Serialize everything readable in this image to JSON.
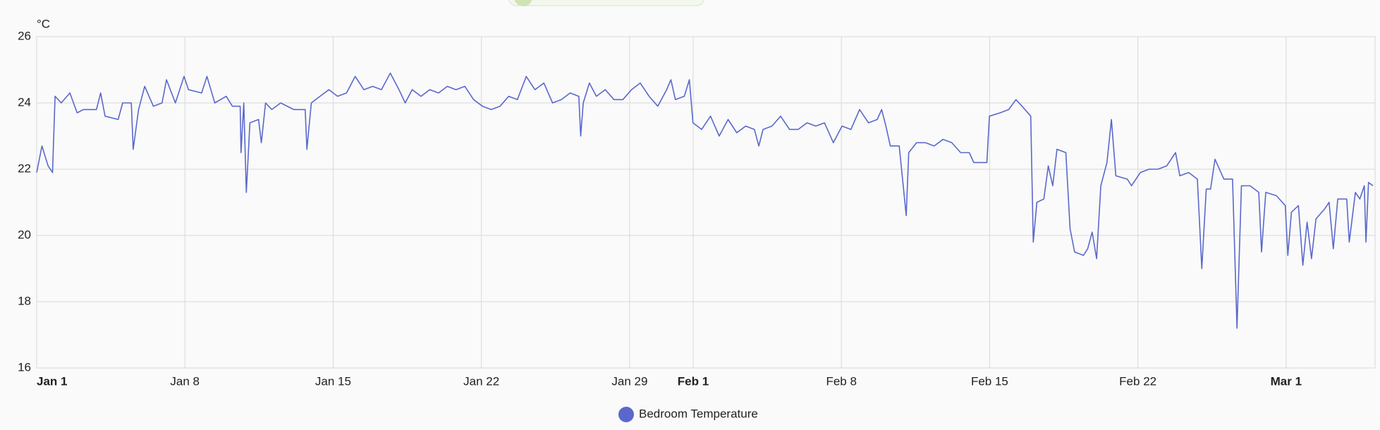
{
  "chart_data": {
    "type": "line",
    "ylabel": "°C",
    "xlim": [
      0,
      63.2
    ],
    "ylim": [
      16,
      26
    ],
    "yticks": [
      16,
      18,
      20,
      22,
      24,
      26
    ],
    "xticks": [
      {
        "value": 0,
        "label": "Jan 1",
        "bold": true
      },
      {
        "value": 7,
        "label": "Jan 8"
      },
      {
        "value": 14,
        "label": "Jan 15"
      },
      {
        "value": 21,
        "label": "Jan 22"
      },
      {
        "value": 28,
        "label": "Jan 29"
      },
      {
        "value": 31,
        "label": "Feb 1",
        "bold": true
      },
      {
        "value": 38,
        "label": "Feb 8"
      },
      {
        "value": 45,
        "label": "Feb 15"
      },
      {
        "value": 52,
        "label": "Feb 22"
      },
      {
        "value": 59,
        "label": "Mar 1",
        "bold": true
      }
    ],
    "grid": true,
    "legend": "bottom",
    "x": [
      0,
      0.25,
      0.54,
      0.75,
      0.87,
      1.16,
      1.57,
      1.91,
      2.2,
      2.82,
      3.02,
      3.23,
      3.85,
      4.06,
      4.47,
      4.56,
      4.81,
      5.1,
      5.51,
      5.92,
      6.13,
      6.55,
      6.96,
      7.17,
      7.79,
      8.04,
      8.41,
      8.95,
      9.24,
      9.61,
      9.65,
      9.78,
      9.9,
      10.07,
      10.48,
      10.61,
      10.81,
      11.1,
      11.52,
      12.14,
      12.68,
      12.76,
      12.97,
      13.38,
      13.8,
      14.21,
      14.63,
      15.04,
      15.45,
      15.87,
      16.28,
      16.7,
      17.11,
      17.4,
      17.73,
      18.15,
      18.56,
      18.98,
      19.39,
      19.8,
      20.22,
      20.63,
      21.05,
      21.46,
      21.88,
      22.29,
      22.7,
      23.12,
      23.53,
      23.95,
      24.36,
      24.78,
      25.19,
      25.6,
      25.69,
      25.81,
      26.1,
      26.43,
      26.85,
      27.26,
      27.68,
      28.09,
      28.5,
      28.92,
      29.33,
      29.75,
      29.95,
      30.16,
      30.58,
      30.82,
      30.99,
      31.4,
      31.82,
      32.23,
      32.65,
      33.06,
      33.48,
      33.89,
      34.1,
      34.3,
      34.72,
      35.13,
      35.55,
      35.96,
      36.38,
      36.79,
      37.2,
      37.62,
      38.03,
      38.45,
      38.86,
      39.28,
      39.69,
      39.9,
      40.1,
      40.31,
      40.73,
      41.06,
      41.18,
      41.55,
      41.97,
      42.38,
      42.8,
      43.21,
      43.63,
      44.04,
      44.25,
      44.87,
      44.99,
      45.49,
      45.9,
      46.24,
      46.53,
      46.94,
      47.06,
      47.23,
      47.56,
      47.77,
      47.98,
      48.18,
      48.6,
      48.8,
      49.01,
      49.43,
      49.63,
      49.84,
      50.05,
      50.25,
      50.54,
      50.75,
      50.96,
      51.5,
      51.7,
      52.12,
      52.53,
      52.95,
      53.36,
      53.78,
      53.98,
      54.4,
      54.81,
      55.02,
      55.23,
      55.43,
      55.64,
      56.06,
      56.47,
      56.68,
      56.89,
      57.3,
      57.71,
      57.84,
      58.04,
      58.54,
      58.96,
      59.08,
      59.25,
      59.58,
      59.79,
      59.99,
      60.2,
      60.41,
      60.82,
      61.03,
      61.23,
      61.44,
      61.86,
      61.98,
      62.27,
      62.48,
      62.69,
      62.77,
      62.89,
      63.1
    ],
    "series": [
      {
        "name": "Bedroom Temperature",
        "color": "#5a68cc",
        "values": [
          21.9,
          22.7,
          22.1,
          21.9,
          24.2,
          24.0,
          24.3,
          23.7,
          23.8,
          23.8,
          24.3,
          23.6,
          23.5,
          24.0,
          24.0,
          22.6,
          23.8,
          24.5,
          23.9,
          24.0,
          24.7,
          24.0,
          24.8,
          24.4,
          24.3,
          24.8,
          24.0,
          24.2,
          23.9,
          23.9,
          22.5,
          24.0,
          21.3,
          23.4,
          23.5,
          22.8,
          24.0,
          23.8,
          24.0,
          23.8,
          23.8,
          22.6,
          24.0,
          24.2,
          24.4,
          24.2,
          24.3,
          24.8,
          24.4,
          24.5,
          24.4,
          24.9,
          24.4,
          24.0,
          24.4,
          24.2,
          24.4,
          24.3,
          24.5,
          24.4,
          24.5,
          24.1,
          23.9,
          23.8,
          23.9,
          24.2,
          24.1,
          24.8,
          24.4,
          24.6,
          24.0,
          24.1,
          24.3,
          24.2,
          23.0,
          24.0,
          24.6,
          24.2,
          24.4,
          24.1,
          24.1,
          24.4,
          24.6,
          24.2,
          23.9,
          24.4,
          24.7,
          24.1,
          24.2,
          24.7,
          23.4,
          23.2,
          23.6,
          23.0,
          23.5,
          23.1,
          23.3,
          23.2,
          22.7,
          23.2,
          23.3,
          23.6,
          23.2,
          23.2,
          23.4,
          23.3,
          23.4,
          22.8,
          23.3,
          23.2,
          23.8,
          23.4,
          23.5,
          23.8,
          23.3,
          22.7,
          22.7,
          20.6,
          22.5,
          22.8,
          22.8,
          22.7,
          22.9,
          22.8,
          22.5,
          22.5,
          22.2,
          22.2,
          23.6,
          23.7,
          23.8,
          24.1,
          23.9,
          23.6,
          19.8,
          21.0,
          21.1,
          22.1,
          21.5,
          22.6,
          22.5,
          20.2,
          19.5,
          19.4,
          19.6,
          20.1,
          19.3,
          21.5,
          22.2,
          23.5,
          21.8,
          21.7,
          21.5,
          21.9,
          22.0,
          22.0,
          22.1,
          22.5,
          21.8,
          21.9,
          21.7,
          19.0,
          21.4,
          21.4,
          22.3,
          21.7,
          21.7,
          17.2,
          21.5,
          21.5,
          21.3,
          19.5,
          21.3,
          21.2,
          20.9,
          19.4,
          20.7,
          20.9,
          19.1,
          20.4,
          19.3,
          20.5,
          20.8,
          21.0,
          19.6,
          21.1,
          21.1,
          19.8,
          21.3,
          21.1,
          21.5,
          19.8,
          21.6,
          21.5
        ]
      }
    ]
  }
}
